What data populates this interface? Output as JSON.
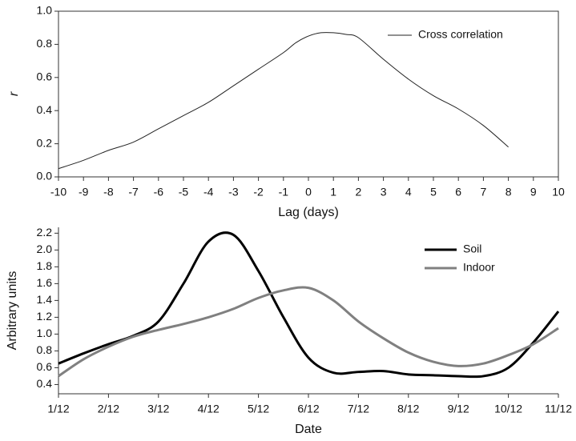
{
  "chart_data": [
    {
      "type": "line",
      "x_label": "Lag (days)",
      "y_label": "r",
      "x": [
        -10,
        -9,
        -8,
        -7,
        -6,
        -5,
        -4,
        -3,
        -2,
        -1,
        -0.5,
        0,
        0.5,
        1,
        1.5,
        2,
        3,
        4,
        5,
        6,
        7,
        8
      ],
      "series": [
        {
          "name": "Cross correlation",
          "color": "#222222",
          "values": [
            0.05,
            0.1,
            0.16,
            0.21,
            0.29,
            0.37,
            0.45,
            0.55,
            0.65,
            0.75,
            0.81,
            0.85,
            0.87,
            0.87,
            0.86,
            0.84,
            0.71,
            0.59,
            0.49,
            0.41,
            0.31,
            0.18
          ]
        }
      ],
      "xlim": [
        -10,
        10
      ],
      "xticks": [
        -10,
        -9,
        -8,
        -7,
        -6,
        -5,
        -4,
        -3,
        -2,
        -1,
        0,
        1,
        2,
        3,
        4,
        5,
        6,
        7,
        8,
        9,
        10
      ],
      "ylim": [
        0,
        1
      ],
      "yticks": [
        {
          "value": 0,
          "label": "0.0"
        },
        0.2,
        0.4,
        0.6,
        0.8,
        {
          "value": 1,
          "label": "1.0"
        }
      ],
      "legend": "upper right"
    },
    {
      "type": "line",
      "x_label": "Date",
      "y_label": "Arbitrary units",
      "x": [
        1,
        1.5,
        2,
        2.5,
        3,
        3.5,
        4,
        4.5,
        5,
        5.5,
        6,
        6.5,
        7,
        7.5,
        8,
        8.5,
        9,
        9.5,
        10,
        10.5,
        11
      ],
      "series": [
        {
          "name": "Soil",
          "color": "#000000",
          "values": [
            0.65,
            0.77,
            0.88,
            0.98,
            1.15,
            1.6,
            2.1,
            2.18,
            1.75,
            1.2,
            0.72,
            0.54,
            0.55,
            0.56,
            0.52,
            0.51,
            0.5,
            0.5,
            0.6,
            0.9,
            1.27
          ]
        },
        {
          "name": "Indoor",
          "color": "#808080",
          "values": [
            0.5,
            0.7,
            0.85,
            0.97,
            1.05,
            1.12,
            1.2,
            1.3,
            1.43,
            1.52,
            1.55,
            1.4,
            1.15,
            0.95,
            0.78,
            0.67,
            0.62,
            0.65,
            0.75,
            0.88,
            1.07
          ]
        }
      ],
      "xlim": [
        1,
        11
      ],
      "xticks": [
        {
          "value": 1,
          "label": "1/12"
        },
        {
          "value": 2,
          "label": "2/12"
        },
        {
          "value": 3,
          "label": "3/12"
        },
        {
          "value": 4,
          "label": "4/12"
        },
        {
          "value": 5,
          "label": "5/12"
        },
        {
          "value": 6,
          "label": "6/12"
        },
        {
          "value": 7,
          "label": "7/12"
        },
        {
          "value": 8,
          "label": "8/12"
        },
        {
          "value": 9,
          "label": "9/12"
        },
        {
          "value": 10,
          "label": "10/12"
        },
        {
          "value": 11,
          "label": "11/12"
        }
      ],
      "ylim": [
        0.29,
        2.27
      ],
      "yticks": [
        0.4,
        0.6,
        0.8,
        {
          "value": 1,
          "label": "1.0"
        },
        1.2,
        1.4,
        1.6,
        1.8,
        {
          "value": 2,
          "label": "2.0"
        },
        2.2
      ],
      "legend": "upper right"
    }
  ]
}
